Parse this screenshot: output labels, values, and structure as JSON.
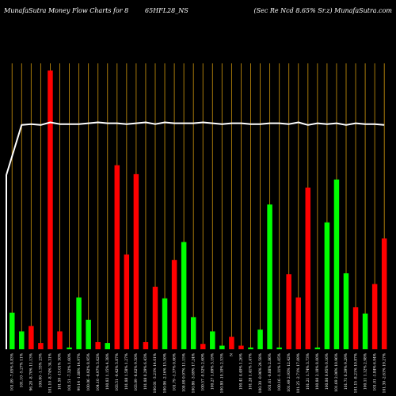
{
  "chart_data": {
    "type": "bar",
    "title": "MunafaSutra  Money Flow  Charts for 8",
    "ticker": "65HFL28_NS",
    "subtitle": "(Sec Re    Ncd 8.65% Sr.z) MunafaSutra.com",
    "xlabel": "",
    "ylabel": "",
    "grid": "vertical orange lines at each bar",
    "colors": {
      "background": "#000000",
      "up": "#00ff00",
      "down": "#ff0000",
      "grid": "#b8860b",
      "line": "#ffffff",
      "text": "#ffffff"
    },
    "categories": [
      "101.89 -7.05% 8.83%",
      "101.10 -5.27% 11%",
      "96.28 -8.70% 11.13%",
      "100.00 -1.33% 23%",
      "101.10 -8.74% 34.31%",
      "101.59 -13.01% 30%",
      "101.51 -7.32% 1.60%",
      "99.14 -1.88% 14.97%",
      "100.06 -0.92% 8.95%",
      "104.10 -4.97% 3.62%",
      "100.83 1.15% 4.38%",
      "103.51 -0.42% 3.87%",
      "101.88 1.58% 1.27%",
      "103.09 -8.02% 9.50%",
      "101.88 0.29% 6.43%",
      "100.01 -3.21% 14.01%",
      "100.06 -2.16% 15.50%",
      "101.79 -1.37% 0.66%",
      "100.09 0.97% 11.15%",
      "100.86 -3.69% 17.24%",
      "100.57 -0.52% 2.60%",
      "100.27 1.09% 3.19%",
      "100.80 -10.10% 2.53%",
      "N",
      "100.41 4.49% 1.26%",
      "101.28 1.41% 1.47%",
      "100.30 -0.96% 24.58%",
      "101.61 -0.88% 2.86%",
      "100.16 -1.11% 1.05%",
      "101.49 2.93% 12.42%",
      "101.25 -2.71% 17.09%",
      "101.21 1.74% 3.73%",
      "100.80 2.18% 8.00%",
      "100.80 0.95% 0.16%",
      "101.69 2.06% 10.96%",
      "101.71 0.39% 9.29%",
      "101.15 -8.21% 10.87%",
      "100.11 1.12% 2.98%",
      "101.01 -1.84% 6.94%",
      "101.30 -2.61% 19.27%"
    ],
    "series": [
      {
        "values": [
          41,
          20,
          26,
          7,
          312,
          20,
          2,
          58,
          33,
          8,
          7,
          206,
          106,
          196,
          8,
          70,
          57,
          100,
          120,
          36,
          6,
          20,
          4,
          14,
          4,
          2,
          22,
          162,
          2,
          84,
          58,
          181,
          2,
          142,
          190,
          85,
          47,
          40,
          73,
          124
        ],
        "colors": [
          "up",
          "up",
          "down",
          "down",
          "down",
          "down",
          "up",
          "up",
          "up",
          "down",
          "up",
          "down",
          "down",
          "down",
          "down",
          "down",
          "up",
          "down",
          "up",
          "up",
          "down",
          "up",
          "up",
          "down",
          "down",
          "up",
          "up",
          "up",
          "up",
          "down",
          "down",
          "down",
          "up",
          "up",
          "up",
          "up",
          "down",
          "up",
          "down",
          "down"
        ]
      }
    ],
    "price_line": [
      195,
      251,
      252,
      251,
      254,
      252,
      252,
      252,
      253,
      254,
      253,
      253,
      252,
      253,
      254,
      252,
      254,
      253,
      253,
      253,
      254,
      253,
      252,
      253,
      253,
      252,
      252,
      253,
      253,
      252,
      254,
      251,
      253,
      252,
      253,
      251,
      253,
      252,
      252,
      251
    ],
    "ylim": [
      0,
      320
    ]
  }
}
